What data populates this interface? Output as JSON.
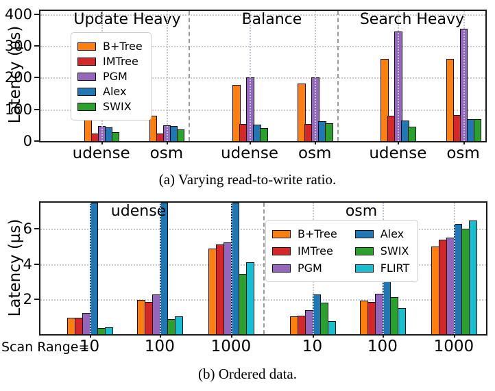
{
  "colors": {
    "B+Tree": "#ff7f0e",
    "IMTree": "#d62728",
    "PGM": "#9467bd",
    "Alex": "#1f77b4",
    "SWIX": "#2ca02c",
    "FLIRT": "#17becf"
  },
  "chart_data": [
    {
      "type": "bar",
      "id": "a",
      "ylabel": "Latency (µs)",
      "yticks": [
        0,
        100,
        200,
        300,
        400
      ],
      "ylim": [
        0,
        410
      ],
      "grid": "dotted horizontal at yticks, dotted vertical at group centers, dashed separators between panels",
      "legend_position": "upper-left inside plot, single column",
      "series": [
        "B+Tree",
        "IMTree",
        "PGM",
        "Alex",
        "SWIX"
      ],
      "panels": [
        {
          "title": "Update Heavy",
          "groups": [
            {
              "label": "udense",
              "values": [
                78,
                24,
                48,
                43,
                28
              ]
            },
            {
              "label": "osm",
              "values": [
                80,
                24,
                49,
                47,
                37
              ]
            }
          ]
        },
        {
          "title": "Balance",
          "groups": [
            {
              "label": "udense",
              "values": [
                178,
                53,
                200,
                52,
                40
              ]
            },
            {
              "label": "osm",
              "values": [
                181,
                55,
                200,
                62,
                56
              ]
            }
          ]
        },
        {
          "title": "Search Heavy",
          "groups": [
            {
              "label": "udense",
              "values": [
                260,
                80,
                345,
                65,
                46
              ]
            },
            {
              "label": "osm",
              "values": [
                258,
                83,
                355,
                70,
                70
              ]
            }
          ]
        }
      ],
      "caption": "(a) Varying read-to-write ratio."
    },
    {
      "type": "bar",
      "id": "b",
      "ylabel": "Latency (µs)",
      "yticks": [
        2,
        4,
        6
      ],
      "ylim": [
        0,
        7.5
      ],
      "grid": "dotted horizontal at yticks, dotted vertical at group centers, dashed separator between panels",
      "legend_position": "upper area of right (osm) panel, two columns",
      "series": [
        "B+Tree",
        "IMTree",
        "PGM",
        "Alex",
        "SWIX",
        "FLIRT"
      ],
      "xprefix": "Scan Range=",
      "note": "Alex bars in all udense groups exceed the y-axis top and are clipped (plotted at axis max 7.5)",
      "panels": [
        {
          "title": "udense",
          "groups": [
            {
              "label": "10",
              "values": [
                0.95,
                0.95,
                1.2,
                7.5,
                0.35,
                0.4
              ]
            },
            {
              "label": "100",
              "values": [
                1.95,
                1.85,
                2.25,
                7.5,
                0.85,
                1.0
              ]
            },
            {
              "label": "1000",
              "values": [
                4.9,
                5.1,
                5.25,
                7.5,
                3.45,
                4.1
              ]
            }
          ]
        },
        {
          "title": "osm",
          "groups": [
            {
              "label": "10",
              "values": [
                1.0,
                1.05,
                1.35,
                2.25,
                1.8,
                0.75
              ]
            },
            {
              "label": "100",
              "values": [
                1.9,
                1.85,
                2.3,
                3.4,
                2.1,
                1.5
              ]
            },
            {
              "label": "1000",
              "values": [
                5.0,
                5.4,
                5.5,
                6.3,
                6.0,
                6.5
              ]
            }
          ]
        }
      ],
      "caption": "(b) Ordered data."
    }
  ]
}
